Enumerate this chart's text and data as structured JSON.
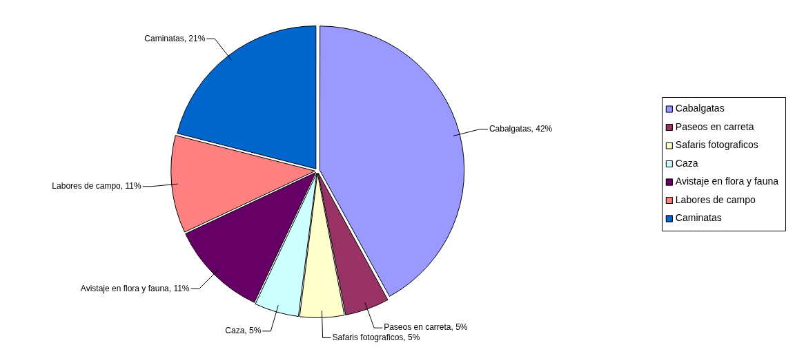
{
  "chart_data": {
    "type": "pie",
    "categories": [
      "Cabalgatas",
      "Paseos en carreta",
      "Safaris fotograficos",
      "Caza",
      "Avistaje en flora y fauna",
      "Labores de campo",
      "Caminatas"
    ],
    "values": [
      42,
      5,
      5,
      5,
      11,
      11,
      21
    ],
    "colors": [
      "#9999ff",
      "#993366",
      "#ffffcc",
      "#ccffff",
      "#660066",
      "#ff8080",
      "#0066cc"
    ],
    "value_labels": [
      "Cabalgatas, 42%",
      "Paseos en carreta, 5%",
      "Safaris fotograficos, 5%",
      "Caza, 5%",
      "Avistaje en flora y fauna, 11%",
      "Labores de campo, 11%",
      "Caminatas, 21%"
    ],
    "legend": "right"
  }
}
